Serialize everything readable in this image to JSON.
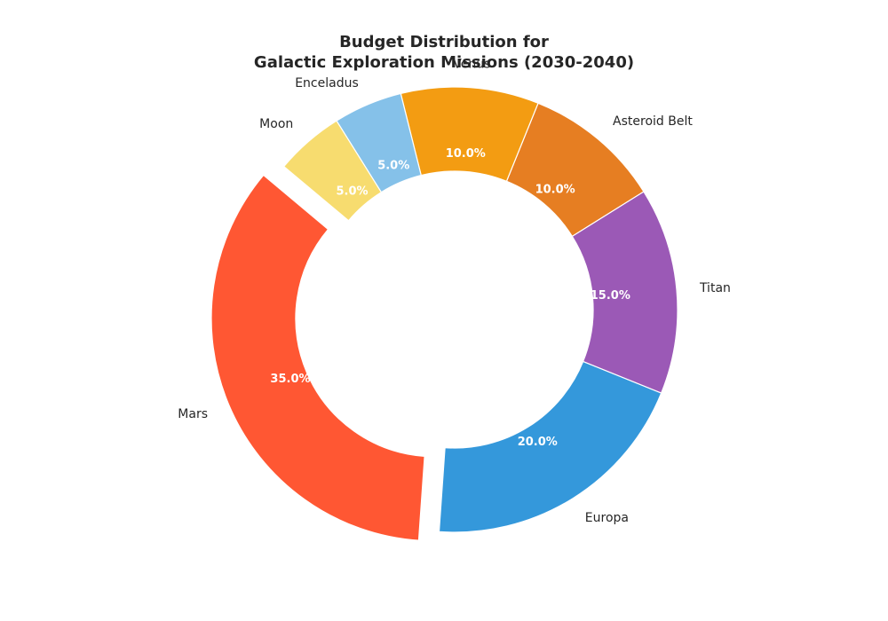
{
  "chart_data": {
    "type": "pie",
    "title": "Budget Distribution for\nGalactic Exploration Missions (2030-2040)",
    "title_lines": [
      "Budget Distribution for",
      "Galactic Exploration Missions (2030-2040)"
    ],
    "style": "donut",
    "start_angle_deg": 140,
    "direction": "counterclockwise",
    "exploded": [
      "Mars"
    ],
    "slices": [
      {
        "label": "Mars",
        "value": 35.0,
        "pct_label": "35.0%",
        "color": "#FF5733"
      },
      {
        "label": "Europa",
        "value": 20.0,
        "pct_label": "20.0%",
        "color": "#3498DB"
      },
      {
        "label": "Titan",
        "value": 15.0,
        "pct_label": "15.0%",
        "color": "#9B59B6"
      },
      {
        "label": "Asteroid Belt",
        "value": 10.0,
        "pct_label": "10.0%",
        "color": "#E67E22"
      },
      {
        "label": "Venus",
        "value": 10.0,
        "pct_label": "10.0%",
        "color": "#F39C12"
      },
      {
        "label": "Enceladus",
        "value": 5.0,
        "pct_label": "5.0%",
        "color": "#85C1E9"
      },
      {
        "label": "Moon",
        "value": 5.0,
        "pct_label": "5.0%",
        "color": "#F7DC6F"
      }
    ]
  }
}
